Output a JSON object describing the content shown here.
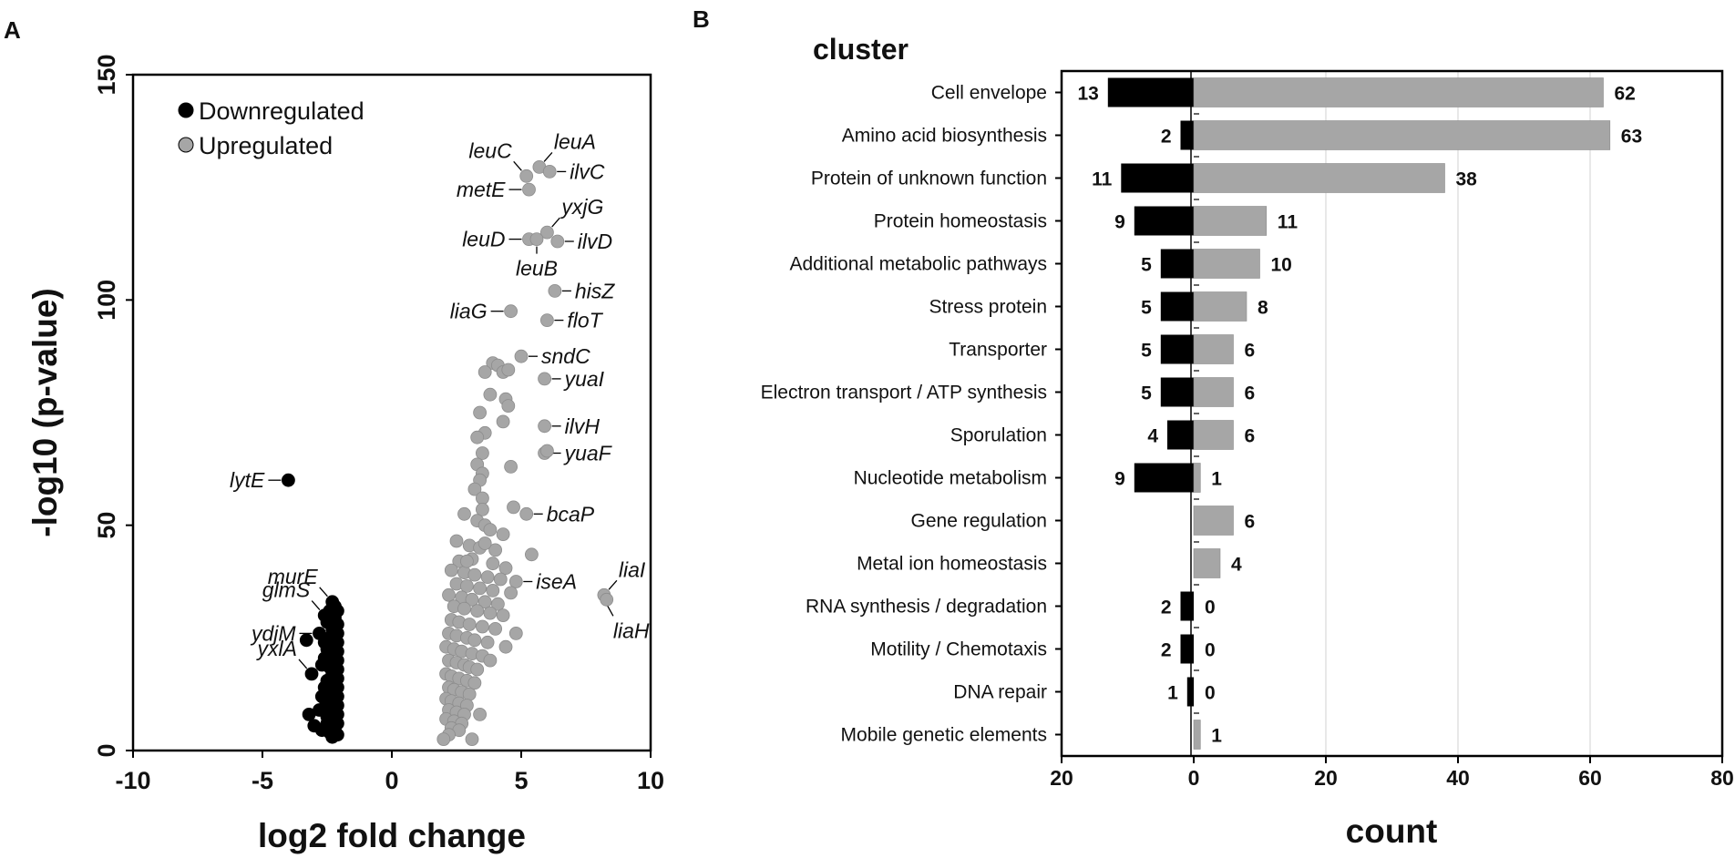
{
  "figure_labels": {
    "panel_a": "A",
    "panel_b": "B"
  },
  "colors": {
    "down": "#000000",
    "up": "#a6a6a6",
    "axis": "#000000",
    "grid": "#d9d9d9"
  },
  "chart_data": [
    {
      "type": "scatter",
      "title": "",
      "xlabel": "log2 fold change",
      "ylabel": "-log10 (p-value)",
      "xlim": [
        -10,
        10
      ],
      "ylim": [
        0,
        150
      ],
      "x_ticks": [
        -10,
        -5,
        0,
        5,
        10
      ],
      "y_ticks": [
        0,
        50,
        100,
        150
      ],
      "legend": {
        "position": "top-left",
        "entries": [
          "Downregulated",
          "Upregulated"
        ]
      },
      "labels": [
        {
          "text": "leuA",
          "x": 5.7,
          "y": 129.5,
          "side": "up-right"
        },
        {
          "text": "leuC",
          "x": 5.2,
          "y": 127.5,
          "side": "up-left"
        },
        {
          "text": "ilvC",
          "x": 6.1,
          "y": 128.5,
          "side": "right"
        },
        {
          "text": "metE",
          "x": 5.3,
          "y": 124.5,
          "side": "left"
        },
        {
          "text": "yxjG",
          "x": 6.0,
          "y": 115.0,
          "side": "up-right"
        },
        {
          "text": "leuD",
          "x": 5.3,
          "y": 113.5,
          "side": "left"
        },
        {
          "text": "ilvD",
          "x": 6.4,
          "y": 113.0,
          "side": "right"
        },
        {
          "text": "leuB",
          "x": 5.6,
          "y": 113.5,
          "side": "down"
        },
        {
          "text": "hisZ",
          "x": 6.3,
          "y": 102.0,
          "side": "right"
        },
        {
          "text": "liaG",
          "x": 4.6,
          "y": 97.5,
          "side": "left"
        },
        {
          "text": "floT",
          "x": 6.0,
          "y": 95.5,
          "side": "right"
        },
        {
          "text": "sndC",
          "x": 5.0,
          "y": 87.5,
          "side": "right"
        },
        {
          "text": "yuaI",
          "x": 5.9,
          "y": 82.5,
          "side": "right"
        },
        {
          "text": "ilvH",
          "x": 5.9,
          "y": 72.0,
          "side": "right"
        },
        {
          "text": "yuaF",
          "x": 5.9,
          "y": 66.0,
          "side": "right"
        },
        {
          "text": "bcaP",
          "x": 5.2,
          "y": 52.5,
          "side": "right"
        },
        {
          "text": "iseA",
          "x": 4.8,
          "y": 37.5,
          "side": "right"
        },
        {
          "text": "liaI",
          "x": 8.2,
          "y": 34.5,
          "side": "up-right"
        },
        {
          "text": "liaH",
          "x": 8.2,
          "y": 33.5,
          "side": "down-right"
        },
        {
          "text": "lytE",
          "x": -4.0,
          "y": 60.0,
          "side": "left"
        },
        {
          "text": "murE",
          "x": -2.3,
          "y": 33.0,
          "side": "up-left"
        },
        {
          "text": "glmS",
          "x": -2.6,
          "y": 30.0,
          "side": "up-left"
        },
        {
          "text": "ydjM",
          "x": -2.8,
          "y": 26.0,
          "side": "left"
        },
        {
          "text": "yxlA",
          "x": -3.1,
          "y": 17.0,
          "side": "up-left"
        }
      ],
      "series": [
        {
          "name": "Downregulated",
          "points": [
            [
              -4.0,
              60.0
            ],
            [
              -2.3,
              33.0
            ],
            [
              -2.6,
              30.0
            ],
            [
              -2.8,
              26.0
            ],
            [
              -3.1,
              17.0
            ],
            [
              -3.3,
              24.5
            ],
            [
              -3.2,
              8.0
            ],
            [
              -3.0,
              5.5
            ],
            [
              -2.7,
              4.5
            ],
            [
              -2.5,
              6.0
            ],
            [
              -2.2,
              32.0
            ],
            [
              -2.1,
              31.0
            ],
            [
              -2.2,
              29.5
            ],
            [
              -2.1,
              28.0
            ],
            [
              -2.3,
              27.0
            ],
            [
              -2.1,
              26.0
            ],
            [
              -2.4,
              25.0
            ],
            [
              -2.1,
              24.0
            ],
            [
              -2.2,
              23.0
            ],
            [
              -2.5,
              22.5
            ],
            [
              -2.1,
              22.0
            ],
            [
              -2.3,
              21.0
            ],
            [
              -2.6,
              20.5
            ],
            [
              -2.1,
              20.0
            ],
            [
              -2.2,
              19.0
            ],
            [
              -2.4,
              18.5
            ],
            [
              -2.1,
              18.0
            ],
            [
              -2.3,
              17.0
            ],
            [
              -2.1,
              16.0
            ],
            [
              -2.5,
              15.5
            ],
            [
              -2.2,
              15.0
            ],
            [
              -2.1,
              14.0
            ],
            [
              -2.4,
              13.5
            ],
            [
              -2.2,
              13.0
            ],
            [
              -2.1,
              12.0
            ],
            [
              -2.6,
              11.5
            ],
            [
              -2.3,
              11.0
            ],
            [
              -2.1,
              10.0
            ],
            [
              -2.4,
              9.5
            ],
            [
              -2.2,
              9.0
            ],
            [
              -2.1,
              8.0
            ],
            [
              -2.5,
              7.5
            ],
            [
              -2.3,
              7.0
            ],
            [
              -2.1,
              6.0
            ],
            [
              -2.2,
              5.0
            ],
            [
              -2.4,
              4.0
            ],
            [
              -2.1,
              3.5
            ],
            [
              -2.3,
              3.0
            ],
            [
              -2.6,
              24.0
            ],
            [
              -2.7,
              19.0
            ],
            [
              -2.6,
              14.0
            ],
            [
              -2.7,
              12.0
            ],
            [
              -2.5,
              28.5
            ],
            [
              -2.4,
              31.0
            ],
            [
              -2.8,
              9.0
            ]
          ]
        },
        {
          "name": "Upregulated",
          "points": [
            [
              5.7,
              129.5
            ],
            [
              5.2,
              127.5
            ],
            [
              6.1,
              128.5
            ],
            [
              5.3,
              124.5
            ],
            [
              6.0,
              115.0
            ],
            [
              5.3,
              113.5
            ],
            [
              5.6,
              113.5
            ],
            [
              6.4,
              113.0
            ],
            [
              6.3,
              102.0
            ],
            [
              4.6,
              97.5
            ],
            [
              6.0,
              95.5
            ],
            [
              5.0,
              87.5
            ],
            [
              5.9,
              82.5
            ],
            [
              5.9,
              72.0
            ],
            [
              5.9,
              66.0
            ],
            [
              6.0,
              66.5
            ],
            [
              5.2,
              52.5
            ],
            [
              4.8,
              37.5
            ],
            [
              8.2,
              34.5
            ],
            [
              8.3,
              33.5
            ],
            [
              3.9,
              86.0
            ],
            [
              4.1,
              85.5
            ],
            [
              4.3,
              84.0
            ],
            [
              4.5,
              84.5
            ],
            [
              3.6,
              84.0
            ],
            [
              3.8,
              79.0
            ],
            [
              4.4,
              78.0
            ],
            [
              4.5,
              76.5
            ],
            [
              3.4,
              75.0
            ],
            [
              4.3,
              73.0
            ],
            [
              3.6,
              70.5
            ],
            [
              3.3,
              69.5
            ],
            [
              3.5,
              66.0
            ],
            [
              3.3,
              63.5
            ],
            [
              4.6,
              63.0
            ],
            [
              3.5,
              61.5
            ],
            [
              3.4,
              60.0
            ],
            [
              3.2,
              58.0
            ],
            [
              3.5,
              56.0
            ],
            [
              4.7,
              54.0
            ],
            [
              3.5,
              53.5
            ],
            [
              2.8,
              52.5
            ],
            [
              3.3,
              51.0
            ],
            [
              3.6,
              50.0
            ],
            [
              3.8,
              49.0
            ],
            [
              4.3,
              48.0
            ],
            [
              2.5,
              46.5
            ],
            [
              3.0,
              45.5
            ],
            [
              3.4,
              45.0
            ],
            [
              4.0,
              44.5
            ],
            [
              5.4,
              43.5
            ],
            [
              2.6,
              42.0
            ],
            [
              3.1,
              42.5
            ],
            [
              3.9,
              41.5
            ],
            [
              4.4,
              40.5
            ],
            [
              2.3,
              40.0
            ],
            [
              2.8,
              39.5
            ],
            [
              3.2,
              39.0
            ],
            [
              3.7,
              38.5
            ],
            [
              4.2,
              38.0
            ],
            [
              2.5,
              37.0
            ],
            [
              2.9,
              36.5
            ],
            [
              3.4,
              36.0
            ],
            [
              3.9,
              35.5
            ],
            [
              4.6,
              35.0
            ],
            [
              2.2,
              34.5
            ],
            [
              2.7,
              34.0
            ],
            [
              3.1,
              33.5
            ],
            [
              3.6,
              33.0
            ],
            [
              4.1,
              32.5
            ],
            [
              2.4,
              32.0
            ],
            [
              2.8,
              31.5
            ],
            [
              3.3,
              31.0
            ],
            [
              3.8,
              30.5
            ],
            [
              4.3,
              30.0
            ],
            [
              2.3,
              29.0
            ],
            [
              2.6,
              28.5
            ],
            [
              3.0,
              28.0
            ],
            [
              3.5,
              27.5
            ],
            [
              4.0,
              27.0
            ],
            [
              2.2,
              26.0
            ],
            [
              2.5,
              25.5
            ],
            [
              2.9,
              25.0
            ],
            [
              3.2,
              24.5
            ],
            [
              3.7,
              24.0
            ],
            [
              2.1,
              23.0
            ],
            [
              2.4,
              22.5
            ],
            [
              2.7,
              22.0
            ],
            [
              3.1,
              21.5
            ],
            [
              3.5,
              21.0
            ],
            [
              2.2,
              20.0
            ],
            [
              2.5,
              19.5
            ],
            [
              2.8,
              19.0
            ],
            [
              3.0,
              18.5
            ],
            [
              3.3,
              18.0
            ],
            [
              2.1,
              17.0
            ],
            [
              2.3,
              16.5
            ],
            [
              2.6,
              16.0
            ],
            [
              2.9,
              15.5
            ],
            [
              3.2,
              15.0
            ],
            [
              2.2,
              14.0
            ],
            [
              2.4,
              13.5
            ],
            [
              2.7,
              13.0
            ],
            [
              3.0,
              12.5
            ],
            [
              2.1,
              11.5
            ],
            [
              2.3,
              11.0
            ],
            [
              2.6,
              10.5
            ],
            [
              2.9,
              10.0
            ],
            [
              2.2,
              9.0
            ],
            [
              2.5,
              8.5
            ],
            [
              2.8,
              8.0
            ],
            [
              3.4,
              8.0
            ],
            [
              2.1,
              7.0
            ],
            [
              2.4,
              6.5
            ],
            [
              2.7,
              6.0
            ],
            [
              2.3,
              5.0
            ],
            [
              2.6,
              4.5
            ],
            [
              2.2,
              3.5
            ],
            [
              2.0,
              2.5
            ],
            [
              3.1,
              2.5
            ],
            [
              3.8,
              20.0
            ],
            [
              4.4,
              23.0
            ],
            [
              2.9,
              42.0
            ],
            [
              3.6,
              46.0
            ],
            [
              4.8,
              26.0
            ]
          ]
        }
      ]
    },
    {
      "type": "bar",
      "title": "cluster",
      "xlabel": "count",
      "ylabel": "",
      "xlim": [
        -20,
        80
      ],
      "x_ticks": [
        -20,
        0,
        20,
        40,
        60,
        80
      ],
      "x_tick_labels": [
        "20",
        "0",
        "20",
        "40",
        "60",
        "80"
      ],
      "grid": true,
      "categories": [
        "Cell envelope",
        "Amino acid biosynthesis",
        "Protein of unknown function",
        "Protein homeostasis",
        "Additional metabolic pathways",
        "Stress protein",
        "Transporter",
        "Electron transport / ATP synthesis",
        "Sporulation",
        "Nucleotide metabolism",
        "Gene regulation",
        "Metal ion homeostasis",
        "RNA synthesis / degradation",
        "Motility / Chemotaxis",
        "DNA repair",
        "Mobile genetic elements"
      ],
      "series": [
        {
          "name": "Downregulated",
          "values": [
            13,
            2,
            11,
            9,
            5,
            5,
            5,
            5,
            4,
            9,
            null,
            null,
            2,
            2,
            1,
            null
          ],
          "labels": [
            "13",
            "2",
            "11",
            "9",
            "5",
            "5",
            "5",
            "5",
            "4",
            "9",
            "",
            "",
            "2",
            "2",
            "1",
            ""
          ]
        },
        {
          "name": "Upregulated",
          "values": [
            62,
            63,
            38,
            11,
            10,
            8,
            6,
            6,
            6,
            1,
            6,
            4,
            0,
            0,
            0,
            1
          ],
          "labels": [
            "62",
            "63",
            "38",
            "11",
            "10",
            "8",
            "6",
            "6",
            "6",
            "1",
            "6",
            "4",
            "0",
            "0",
            "0",
            "1"
          ]
        }
      ]
    }
  ]
}
